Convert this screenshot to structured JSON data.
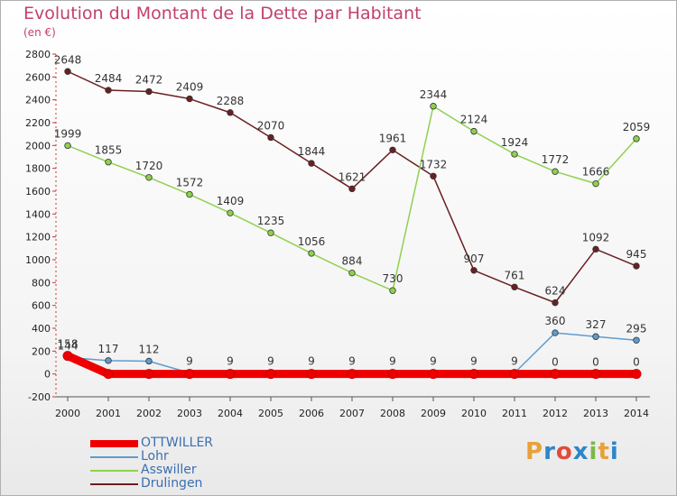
{
  "header": {
    "title": "Evolution du Montant de la Dette par Habitant",
    "unit": "(en €)"
  },
  "logo": {
    "text": "Proxiti",
    "colors": [
      "#e8a13a",
      "#2d86c9",
      "#e24a3b",
      "#2d86c9",
      "#7cb84a",
      "#e8a13a",
      "#2d86c9"
    ]
  },
  "chart_data": {
    "type": "line",
    "title": "Evolution du Montant de la Dette par Habitant",
    "subtitle": "(en €)",
    "xlabel": "",
    "ylabel": "",
    "x": [
      "2000",
      "2001",
      "2002",
      "2003",
      "2004",
      "2005",
      "2006",
      "2007",
      "2008",
      "2009",
      "2010",
      "2011",
      "2012",
      "2013",
      "2014"
    ],
    "ylim": [
      -200,
      2800
    ],
    "yticks": [
      -200,
      0,
      200,
      400,
      600,
      800,
      1000,
      1200,
      1400,
      1600,
      1800,
      2000,
      2200,
      2400,
      2600,
      2800
    ],
    "grid": false,
    "legend": "bottom-left",
    "series": [
      {
        "name": "OTTWILLER",
        "color": "#ee0000",
        "values": [
          158,
          0,
          0,
          0,
          0,
          0,
          0,
          0,
          0,
          0,
          0,
          0,
          0,
          0,
          0
        ],
        "labels": [
          "158",
          "",
          "",
          "",
          "",
          "",
          "",
          "",
          "",
          "",
          "",
          "",
          "0",
          "0",
          "0"
        ]
      },
      {
        "name": "Lohr",
        "color": "#5f9ccf",
        "values": [
          144,
          117,
          112,
          9,
          9,
          9,
          9,
          9,
          9,
          9,
          9,
          9,
          360,
          327,
          295
        ],
        "labels": [
          "144",
          "117",
          "112",
          "9",
          "9",
          "9",
          "9",
          "9",
          "9",
          "9",
          "9",
          "9",
          "360",
          "327",
          "295"
        ]
      },
      {
        "name": "Asswiller",
        "color": "#8fd14f",
        "values": [
          1999,
          1855,
          1720,
          1572,
          1409,
          1235,
          1056,
          884,
          730,
          2344,
          2124,
          1924,
          1772,
          1666,
          2059
        ],
        "labels": [
          "1999",
          "1855",
          "1720",
          "1572",
          "1409",
          "1235",
          "1056",
          "884",
          "730",
          "2344",
          "2124",
          "1924",
          "1772",
          "1666",
          "2059"
        ]
      },
      {
        "name": "Drulingen",
        "color": "#6b1f22",
        "values": [
          2648,
          2484,
          2472,
          2409,
          2288,
          2070,
          1844,
          1621,
          1961,
          1732,
          907,
          761,
          624,
          1092,
          945
        ],
        "labels": [
          "2648",
          "2484",
          "2472",
          "2409",
          "2288",
          "2070",
          "1844",
          "1621",
          "1961",
          "1732",
          "907",
          "761",
          "624",
          "1092",
          "945"
        ]
      }
    ]
  }
}
